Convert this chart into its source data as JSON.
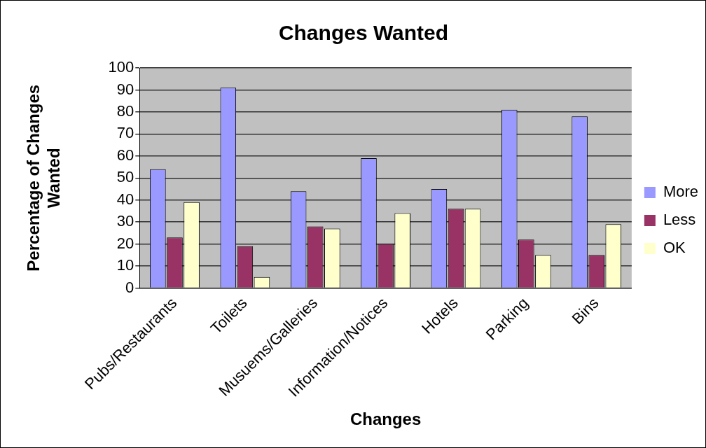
{
  "chart_data": {
    "type": "bar",
    "title": "Changes Wanted",
    "xlabel": "Changes",
    "ylabel": [
      "Percentage of Changes",
      "Wanted"
    ],
    "categories": [
      "Pubs/Restaurants",
      "Toilets",
      "Musuems/Galleries",
      "Information/Notices",
      "Hotels",
      "Parking",
      "Bins"
    ],
    "series": [
      {
        "name": "More",
        "color": "#9999ff",
        "values": [
          54,
          91,
          44,
          59,
          45,
          81,
          78
        ]
      },
      {
        "name": "Less",
        "color": "#993366",
        "values": [
          23,
          19,
          28,
          20,
          36,
          22,
          15
        ]
      },
      {
        "name": "OK",
        "color": "#ffffcc",
        "values": [
          39,
          5,
          27,
          34,
          36,
          15,
          29
        ]
      }
    ],
    "ylim": [
      0,
      100
    ],
    "yticks": [
      0,
      10,
      20,
      30,
      40,
      50,
      60,
      70,
      80,
      90,
      100
    ],
    "grid": "y",
    "legend": "right"
  }
}
